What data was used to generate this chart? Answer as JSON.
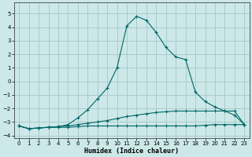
{
  "xlabel": "Humidex (Indice chaleur)",
  "background_color": "#cce8e8",
  "grid_color": "#aacccc",
  "line_color": "#006666",
  "xlim": [
    -0.5,
    23.5
  ],
  "ylim": [
    -4.2,
    5.8
  ],
  "xticks": [
    0,
    1,
    2,
    3,
    4,
    5,
    6,
    7,
    8,
    9,
    10,
    11,
    12,
    13,
    14,
    15,
    16,
    17,
    18,
    19,
    20,
    21,
    22,
    23
  ],
  "yticks": [
    -4,
    -3,
    -2,
    -1,
    0,
    1,
    2,
    3,
    4,
    5
  ],
  "series1_x": [
    0,
    1,
    2,
    3,
    4,
    5,
    6,
    7,
    8,
    9,
    10,
    11,
    12,
    13,
    14,
    15,
    16,
    17,
    18,
    19,
    20,
    21,
    22,
    23
  ],
  "series1_y": [
    -3.3,
    -3.5,
    -3.45,
    -3.4,
    -3.4,
    -3.4,
    -3.35,
    -3.3,
    -3.3,
    -3.3,
    -3.3,
    -3.3,
    -3.3,
    -3.3,
    -3.3,
    -3.3,
    -3.3,
    -3.3,
    -3.3,
    -3.25,
    -3.2,
    -3.2,
    -3.2,
    -3.2
  ],
  "series2_x": [
    0,
    1,
    2,
    3,
    4,
    5,
    6,
    7,
    8,
    9,
    10,
    11,
    12,
    13,
    14,
    15,
    16,
    17,
    18,
    19,
    20,
    21,
    22,
    23
  ],
  "series2_y": [
    -3.3,
    -3.5,
    -3.45,
    -3.4,
    -3.35,
    -3.3,
    -3.2,
    -3.1,
    -3.0,
    -2.9,
    -2.75,
    -2.6,
    -2.5,
    -2.4,
    -2.3,
    -2.25,
    -2.2,
    -2.2,
    -2.2,
    -2.2,
    -2.2,
    -2.2,
    -2.2,
    -3.2
  ],
  "series3_x": [
    0,
    1,
    2,
    3,
    4,
    5,
    6,
    7,
    8,
    9,
    10,
    11,
    12,
    13,
    14,
    15,
    16,
    17,
    18,
    19,
    20,
    21,
    22,
    23
  ],
  "series3_y": [
    -3.3,
    -3.5,
    -3.45,
    -3.4,
    -3.35,
    -3.2,
    -2.7,
    -2.1,
    -1.3,
    -0.5,
    1.0,
    4.1,
    4.8,
    4.5,
    3.6,
    2.5,
    1.8,
    1.6,
    -0.8,
    -1.5,
    -1.9,
    -2.2,
    -2.5,
    -3.2
  ]
}
